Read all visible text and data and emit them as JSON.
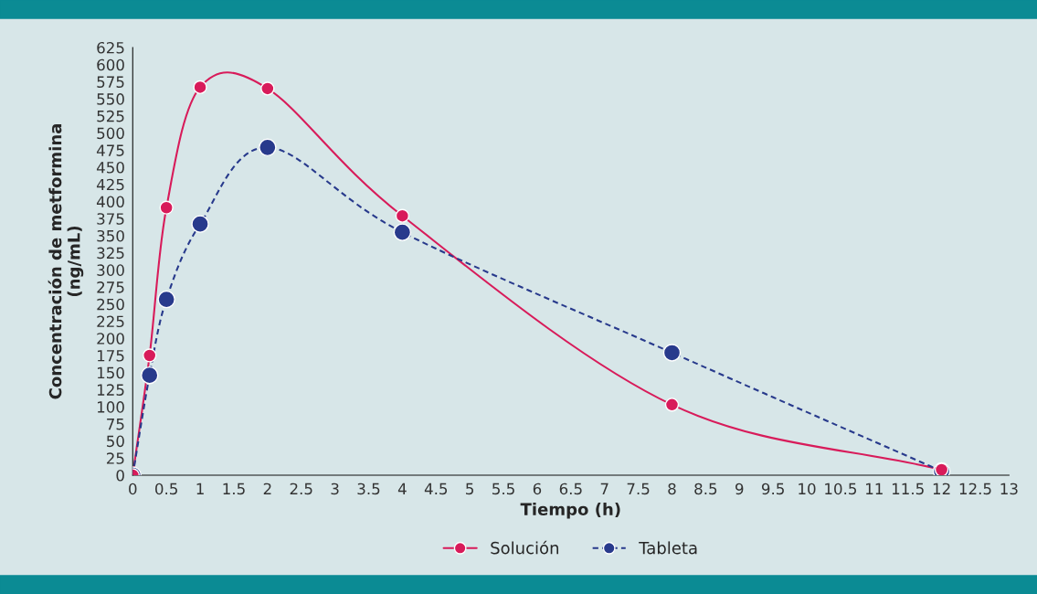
{
  "chart_data": {
    "type": "line",
    "xlabel": "Tiempo (h)",
    "ylabel": "Concentración de metformina\n(ng/mL)",
    "xlim": [
      0,
      13
    ],
    "xticks": [
      0,
      0.5,
      1,
      1.5,
      2,
      2.5,
      3,
      3.5,
      4,
      4.5,
      5,
      5.5,
      6,
      6.5,
      7,
      7.5,
      8,
      8.5,
      9,
      9.5,
      10,
      10.5,
      11,
      11.5,
      12,
      12.5,
      13
    ],
    "ylim": [
      0,
      625
    ],
    "yticks": [
      0,
      25,
      50,
      75,
      100,
      125,
      150,
      175,
      200,
      225,
      250,
      275,
      300,
      325,
      350,
      375,
      400,
      425,
      450,
      475,
      500,
      525,
      550,
      575,
      600,
      625
    ],
    "grid": false,
    "legend": "bottom",
    "marker": "circle",
    "series": [
      {
        "name": "Solución",
        "color": "#d81b5a",
        "line_style": "solid",
        "x": [
          0,
          0.25,
          0.5,
          1,
          2,
          4,
          8,
          12
        ],
        "values": [
          0,
          175,
          391,
          567,
          565,
          379,
          103,
          8
        ]
      },
      {
        "name": "Tableta",
        "color": "#283a8c",
        "line_style": "dashed",
        "x": [
          0,
          0.25,
          0.5,
          1,
          2,
          4,
          8,
          12
        ],
        "values": [
          0,
          146,
          257,
          367,
          479,
          355,
          179,
          6
        ]
      }
    ]
  }
}
